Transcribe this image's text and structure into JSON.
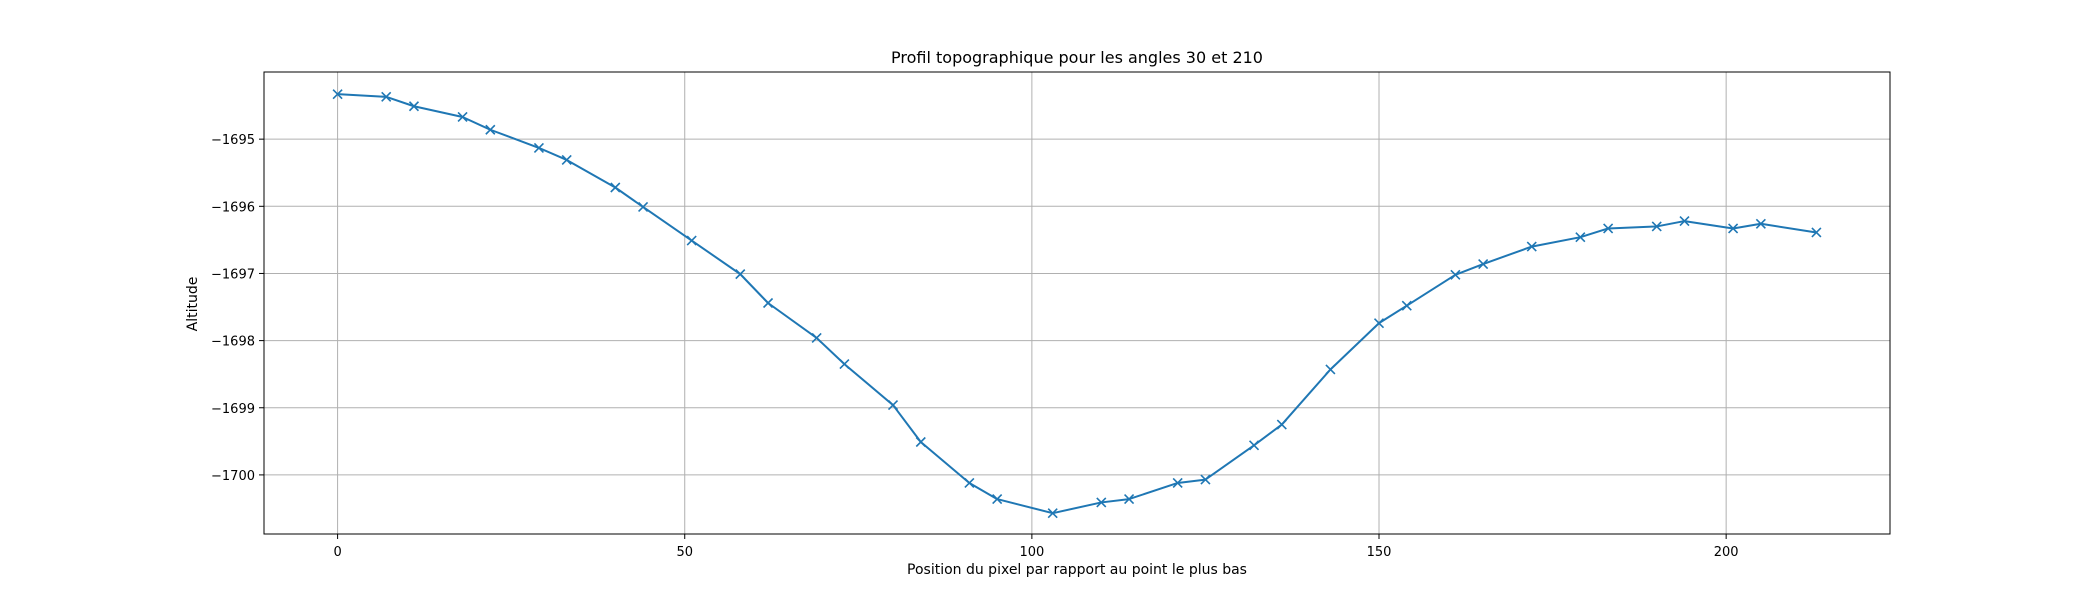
{
  "chart_data": {
    "type": "line",
    "title": "Profil topographique pour les angles 30 et 210",
    "xlabel": "Position du pixel par rapport au point le plus bas",
    "ylabel": "Altitude",
    "xlim": [
      -10.6,
      223.6
    ],
    "ylim": [
      -1700.88,
      -1694.0
    ],
    "xticks": [
      0,
      50,
      100,
      150,
      200
    ],
    "xtick_labels": [
      "0",
      "50",
      "100",
      "150",
      "200"
    ],
    "yticks": [
      -1695,
      -1696,
      -1697,
      -1698,
      -1699,
      -1700
    ],
    "ytick_labels": [
      "−1695",
      "−1696",
      "−1697",
      "−1698",
      "−1699",
      "−1700"
    ],
    "grid": true,
    "marker": "x",
    "color": "#1f77b4",
    "series": [
      {
        "x": [
          0,
          7,
          11,
          18,
          22,
          29,
          33,
          40,
          44,
          51,
          58,
          62,
          69,
          73,
          80,
          84,
          91,
          95,
          103,
          110,
          114,
          121,
          125,
          132,
          136,
          143,
          150,
          154,
          161,
          165,
          172,
          179,
          183,
          190,
          194,
          201,
          205,
          213
        ],
        "y": [
          -1694.33,
          -1694.37,
          -1694.51,
          -1694.67,
          -1694.86,
          -1695.13,
          -1695.31,
          -1695.72,
          -1696.01,
          -1696.51,
          -1697.01,
          -1697.44,
          -1697.96,
          -1698.35,
          -1698.96,
          -1699.51,
          -1700.12,
          -1700.36,
          -1700.57,
          -1700.41,
          -1700.36,
          -1700.12,
          -1700.07,
          -1699.56,
          -1699.25,
          -1698.43,
          -1697.74,
          -1697.48,
          -1697.02,
          -1696.86,
          -1696.6,
          -1696.46,
          -1696.33,
          -1696.3,
          -1696.22,
          -1696.33,
          -1696.26,
          -1696.39
        ]
      }
    ]
  }
}
